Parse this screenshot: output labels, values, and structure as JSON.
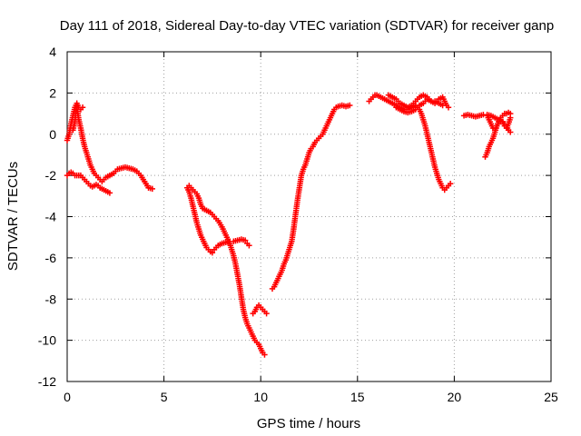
{
  "chart_data": {
    "type": "scatter",
    "title": "Day 111 of 2018, Sidereal Day-to-day VTEC variation (SDTVAR) for receiver ganp",
    "xlabel": "GPS time / hours",
    "ylabel": "SDTVAR / TECUs",
    "xlim": [
      0,
      25
    ],
    "ylim": [
      -12,
      4
    ],
    "xticks": [
      0,
      5,
      10,
      15,
      20,
      25
    ],
    "yticks": [
      -12,
      -10,
      -8,
      -6,
      -4,
      -2,
      0,
      2,
      4
    ],
    "grid": true,
    "marker": "+",
    "color": "#ff0000",
    "series": [
      {
        "points": [
          [
            0.0,
            -0.3
          ],
          [
            0.1,
            0.0
          ],
          [
            0.2,
            0.5
          ],
          [
            0.3,
            0.9
          ],
          [
            0.4,
            1.3
          ],
          [
            0.5,
            1.5
          ],
          [
            0.6,
            1.3
          ],
          [
            0.7,
            1.2
          ],
          [
            0.8,
            1.3
          ]
        ]
      },
      {
        "points": [
          [
            0.3,
            0.2
          ],
          [
            0.4,
            0.6
          ],
          [
            0.45,
            1.1
          ],
          [
            0.5,
            1.3
          ],
          [
            0.55,
            1.0
          ],
          [
            0.6,
            0.7
          ],
          [
            0.7,
            0.3
          ],
          [
            0.8,
            -0.2
          ],
          [
            0.9,
            -0.6
          ],
          [
            1.0,
            -0.9
          ],
          [
            1.1,
            -1.2
          ],
          [
            1.2,
            -1.5
          ],
          [
            1.3,
            -1.7
          ],
          [
            1.4,
            -1.9
          ],
          [
            1.5,
            -2.0
          ],
          [
            1.6,
            -2.1
          ],
          [
            1.7,
            -2.2
          ],
          [
            1.8,
            -2.3
          ],
          [
            1.9,
            -2.2
          ],
          [
            2.0,
            -2.1
          ],
          [
            2.2,
            -2.0
          ],
          [
            2.4,
            -1.9
          ],
          [
            2.6,
            -1.7
          ],
          [
            2.8,
            -1.65
          ],
          [
            3.0,
            -1.6
          ],
          [
            3.2,
            -1.65
          ],
          [
            3.4,
            -1.7
          ],
          [
            3.6,
            -1.8
          ],
          [
            3.8,
            -2.0
          ],
          [
            4.0,
            -2.3
          ],
          [
            4.2,
            -2.6
          ],
          [
            4.4,
            -2.65
          ]
        ]
      },
      {
        "points": [
          [
            0.0,
            -2.0
          ],
          [
            0.1,
            -1.9
          ],
          [
            0.2,
            -1.85
          ],
          [
            0.3,
            -1.9
          ],
          [
            0.4,
            -2.0
          ],
          [
            0.5,
            -2.0
          ],
          [
            0.6,
            -2.0
          ],
          [
            0.7,
            -2.0
          ],
          [
            0.8,
            -2.1
          ],
          [
            0.9,
            -2.2
          ],
          [
            1.0,
            -2.3
          ],
          [
            1.1,
            -2.4
          ],
          [
            1.2,
            -2.5
          ],
          [
            1.3,
            -2.55
          ],
          [
            1.4,
            -2.5
          ],
          [
            1.5,
            -2.45
          ],
          [
            1.6,
            -2.5
          ],
          [
            1.7,
            -2.6
          ],
          [
            1.8,
            -2.65
          ],
          [
            1.9,
            -2.7
          ],
          [
            2.0,
            -2.75
          ],
          [
            2.1,
            -2.8
          ],
          [
            2.2,
            -2.85
          ]
        ]
      },
      {
        "points": [
          [
            6.2,
            -2.6
          ],
          [
            6.3,
            -2.8
          ],
          [
            6.4,
            -3.1
          ],
          [
            6.5,
            -3.5
          ],
          [
            6.6,
            -3.9
          ],
          [
            6.7,
            -4.3
          ],
          [
            6.8,
            -4.6
          ],
          [
            6.9,
            -4.9
          ],
          [
            7.0,
            -5.1
          ],
          [
            7.1,
            -5.3
          ],
          [
            7.2,
            -5.5
          ],
          [
            7.3,
            -5.6
          ],
          [
            7.4,
            -5.7
          ],
          [
            7.5,
            -5.75
          ],
          [
            7.6,
            -5.6
          ],
          [
            7.7,
            -5.5
          ],
          [
            7.8,
            -5.4
          ],
          [
            7.9,
            -5.35
          ],
          [
            8.0,
            -5.3
          ],
          [
            8.2,
            -5.25
          ],
          [
            8.4,
            -5.2
          ],
          [
            8.6,
            -5.2
          ],
          [
            8.8,
            -5.15
          ],
          [
            9.0,
            -5.1
          ],
          [
            9.2,
            -5.15
          ],
          [
            9.3,
            -5.3
          ],
          [
            9.4,
            -5.4
          ]
        ]
      },
      {
        "points": [
          [
            6.3,
            -2.5
          ],
          [
            6.4,
            -2.6
          ],
          [
            6.5,
            -2.7
          ],
          [
            6.6,
            -2.8
          ],
          [
            6.7,
            -2.9
          ],
          [
            6.8,
            -3.1
          ],
          [
            6.9,
            -3.4
          ],
          [
            7.0,
            -3.6
          ],
          [
            7.2,
            -3.7
          ],
          [
            7.4,
            -3.8
          ],
          [
            7.6,
            -4.0
          ],
          [
            7.8,
            -4.2
          ],
          [
            8.0,
            -4.5
          ],
          [
            8.1,
            -4.7
          ],
          [
            8.2,
            -4.9
          ],
          [
            8.3,
            -5.1
          ],
          [
            8.4,
            -5.3
          ],
          [
            8.5,
            -5.6
          ],
          [
            8.6,
            -5.9
          ],
          [
            8.7,
            -6.3
          ],
          [
            8.8,
            -6.8
          ],
          [
            8.9,
            -7.3
          ],
          [
            9.0,
            -7.9
          ],
          [
            9.1,
            -8.5
          ],
          [
            9.2,
            -8.9
          ],
          [
            9.3,
            -9.2
          ],
          [
            9.4,
            -9.4
          ],
          [
            9.5,
            -9.6
          ],
          [
            9.6,
            -9.8
          ],
          [
            9.7,
            -10.0
          ],
          [
            9.8,
            -10.1
          ],
          [
            9.9,
            -10.2
          ],
          [
            10.0,
            -10.4
          ],
          [
            10.1,
            -10.6
          ],
          [
            10.2,
            -10.7
          ]
        ]
      },
      {
        "points": [
          [
            9.6,
            -8.7
          ],
          [
            9.7,
            -8.6
          ],
          [
            9.8,
            -8.4
          ],
          [
            9.9,
            -8.3
          ],
          [
            10.0,
            -8.4
          ],
          [
            10.1,
            -8.5
          ],
          [
            10.2,
            -8.6
          ],
          [
            10.3,
            -8.7
          ]
        ]
      },
      {
        "points": [
          [
            10.6,
            -7.5
          ],
          [
            10.7,
            -7.4
          ],
          [
            10.8,
            -7.2
          ],
          [
            10.9,
            -7.0
          ],
          [
            11.0,
            -6.8
          ],
          [
            11.1,
            -6.6
          ],
          [
            11.2,
            -6.3
          ],
          [
            11.3,
            -6.1
          ],
          [
            11.4,
            -5.8
          ],
          [
            11.5,
            -5.5
          ],
          [
            11.6,
            -5.2
          ],
          [
            11.7,
            -4.6
          ],
          [
            11.8,
            -3.9
          ],
          [
            11.9,
            -3.2
          ],
          [
            12.0,
            -2.6
          ],
          [
            12.1,
            -2.0
          ],
          [
            12.2,
            -1.7
          ],
          [
            12.3,
            -1.5
          ],
          [
            12.4,
            -1.2
          ],
          [
            12.5,
            -0.9
          ],
          [
            12.6,
            -0.7
          ],
          [
            12.7,
            -0.6
          ],
          [
            12.8,
            -0.4
          ],
          [
            12.9,
            -0.3
          ],
          [
            13.0,
            -0.2
          ],
          [
            13.1,
            -0.1
          ],
          [
            13.2,
            0.0
          ],
          [
            13.3,
            0.2
          ],
          [
            13.4,
            0.4
          ],
          [
            13.5,
            0.6
          ],
          [
            13.6,
            0.8
          ],
          [
            13.7,
            1.0
          ],
          [
            13.8,
            1.2
          ],
          [
            13.9,
            1.3
          ],
          [
            14.0,
            1.35
          ],
          [
            14.2,
            1.4
          ],
          [
            14.4,
            1.35
          ],
          [
            14.6,
            1.4
          ]
        ]
      },
      {
        "points": [
          [
            15.6,
            1.6
          ],
          [
            15.7,
            1.7
          ],
          [
            15.8,
            1.8
          ],
          [
            15.9,
            1.9
          ],
          [
            16.0,
            1.9
          ],
          [
            16.2,
            1.8
          ],
          [
            16.4,
            1.7
          ],
          [
            16.6,
            1.6
          ],
          [
            16.8,
            1.5
          ],
          [
            17.0,
            1.4
          ],
          [
            17.2,
            1.3
          ],
          [
            17.4,
            1.2
          ],
          [
            17.6,
            1.2
          ],
          [
            17.8,
            1.3
          ],
          [
            18.0,
            1.4
          ],
          [
            18.2,
            1.2
          ],
          [
            18.3,
            1.0
          ],
          [
            18.4,
            0.7
          ],
          [
            18.5,
            0.4
          ],
          [
            18.6,
            0.0
          ],
          [
            18.7,
            -0.4
          ],
          [
            18.8,
            -0.8
          ],
          [
            18.9,
            -1.2
          ],
          [
            19.0,
            -1.6
          ],
          [
            19.1,
            -1.9
          ],
          [
            19.2,
            -2.2
          ],
          [
            19.3,
            -2.4
          ],
          [
            19.4,
            -2.6
          ],
          [
            19.5,
            -2.7
          ],
          [
            19.6,
            -2.6
          ],
          [
            19.7,
            -2.5
          ],
          [
            19.8,
            -2.4
          ]
        ]
      },
      {
        "points": [
          [
            16.6,
            1.9
          ],
          [
            16.8,
            1.8
          ],
          [
            17.0,
            1.7
          ],
          [
            17.2,
            1.5
          ],
          [
            17.4,
            1.4
          ],
          [
            17.6,
            1.3
          ],
          [
            17.8,
            1.4
          ],
          [
            18.0,
            1.6
          ],
          [
            18.2,
            1.8
          ],
          [
            18.4,
            1.9
          ],
          [
            18.6,
            1.8
          ],
          [
            18.8,
            1.6
          ],
          [
            19.0,
            1.5
          ],
          [
            19.2,
            1.7
          ],
          [
            19.4,
            1.8
          ],
          [
            19.5,
            1.6
          ],
          [
            19.6,
            1.4
          ],
          [
            19.7,
            1.3
          ]
        ]
      },
      {
        "points": [
          [
            17.0,
            1.3
          ],
          [
            17.2,
            1.2
          ],
          [
            17.4,
            1.1
          ],
          [
            17.6,
            1.05
          ],
          [
            17.8,
            1.1
          ],
          [
            18.0,
            1.2
          ],
          [
            18.2,
            1.4
          ],
          [
            18.4,
            1.5
          ],
          [
            18.6,
            1.7
          ],
          [
            18.8,
            1.6
          ],
          [
            19.0,
            1.6
          ],
          [
            19.2,
            1.5
          ],
          [
            19.4,
            1.4
          ]
        ]
      },
      {
        "points": [
          [
            20.5,
            0.9
          ],
          [
            20.7,
            0.95
          ],
          [
            20.9,
            0.9
          ],
          [
            21.1,
            0.85
          ],
          [
            21.3,
            0.9
          ],
          [
            21.5,
            0.95
          ],
          [
            21.7,
            0.95
          ],
          [
            21.9,
            0.9
          ],
          [
            22.1,
            0.8
          ],
          [
            22.3,
            0.7
          ],
          [
            22.5,
            0.6
          ],
          [
            22.7,
            0.4
          ],
          [
            22.8,
            0.2
          ],
          [
            22.9,
            0.1
          ]
        ]
      },
      {
        "points": [
          [
            21.6,
            -1.1
          ],
          [
            21.7,
            -0.9
          ],
          [
            21.8,
            -0.6
          ],
          [
            21.9,
            -0.4
          ],
          [
            22.0,
            -0.2
          ],
          [
            22.1,
            0.1
          ],
          [
            22.2,
            0.4
          ],
          [
            22.3,
            0.6
          ],
          [
            22.4,
            0.8
          ],
          [
            22.5,
            0.9
          ],
          [
            22.6,
            1.0
          ],
          [
            22.7,
            1.0
          ],
          [
            22.8,
            1.05
          ],
          [
            22.9,
            1.0
          ]
        ]
      },
      {
        "points": [
          [
            21.7,
            0.9
          ],
          [
            21.8,
            0.7
          ],
          [
            21.9,
            0.5
          ],
          [
            22.0,
            0.3
          ],
          [
            22.1,
            0.2
          ],
          [
            22.2,
            0.4
          ],
          [
            22.3,
            0.6
          ],
          [
            22.4,
            0.7
          ],
          [
            22.5,
            0.6
          ],
          [
            22.6,
            0.4
          ],
          [
            22.7,
            0.3
          ],
          [
            22.8,
            0.5
          ],
          [
            22.9,
            0.8
          ]
        ]
      }
    ]
  }
}
